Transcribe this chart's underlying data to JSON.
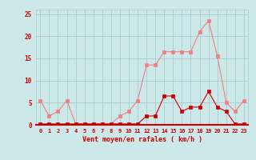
{
  "hours": [
    0,
    1,
    2,
    3,
    4,
    5,
    6,
    7,
    8,
    9,
    10,
    11,
    12,
    13,
    14,
    15,
    16,
    17,
    18,
    19,
    20,
    21,
    22,
    23
  ],
  "rafales": [
    5.5,
    2.0,
    3.0,
    5.5,
    0.2,
    0.2,
    0.2,
    0.2,
    0.2,
    2.0,
    3.0,
    5.5,
    13.5,
    13.5,
    16.5,
    16.5,
    16.5,
    16.5,
    21.0,
    23.5,
    15.5,
    5.0,
    3.0,
    5.5
  ],
  "moyen": [
    0.2,
    0.2,
    0.2,
    0.2,
    0.2,
    0.2,
    0.2,
    0.2,
    0.2,
    0.2,
    0.2,
    0.2,
    2.0,
    2.0,
    6.5,
    6.5,
    3.0,
    4.0,
    4.0,
    7.5,
    4.0,
    3.0,
    0.2,
    0.2
  ],
  "color_rafales": "#f08080",
  "color_moyen": "#cc0000",
  "bg_color": "#cce8e8",
  "grid_color": "#aacccc",
  "axis_color": "#cc0000",
  "xlabel": "Vent moyen/en rafales ( km/h )",
  "ylim": [
    0,
    26
  ],
  "yticks": [
    0,
    5,
    10,
    15,
    20,
    25
  ],
  "marker": "s",
  "markersize": 2.5,
  "linewidth": 0.8
}
